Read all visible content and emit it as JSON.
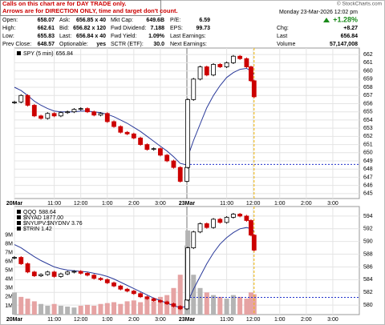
{
  "header": {
    "notice": [
      "Calls on this chart are for DAY TRADE only.",
      "Arrows are for DIRECTION ONLY, time and target don't count."
    ],
    "copyright": "© StockCharts.com",
    "date": "Monday 23-Mar-2026 12:02 pm",
    "change_pct": "+1.28%",
    "fields": [
      [
        [
          "Open:",
          "658.07"
        ],
        [
          "Ask:",
          "656.85 x 40"
        ],
        [
          "Mkt Cap:",
          "649.6B"
        ],
        [
          "P/E:",
          "6.59"
        ]
      ],
      [
        [
          "High:",
          "662.61"
        ],
        [
          "Bid:",
          "656.82 x 120"
        ],
        [
          "Fwd Dividend:",
          "7.188"
        ],
        [
          "EPS:",
          "99.73"
        ]
      ],
      [
        [
          "Low:",
          "655.83"
        ],
        [
          "Last:",
          "656.84 x 40"
        ],
        [
          "Fwd Yield:",
          "1.09%"
        ],
        [
          "Last Earnings:"
        ]
      ],
      [
        [
          "Prev Close:",
          "648.57"
        ],
        [
          "Optionable:",
          "yes"
        ],
        [
          "SCTR (ETF):",
          "30.0"
        ],
        [
          "Next Earnings:"
        ]
      ]
    ],
    "right": [
      [
        "Chg:",
        "+8.27"
      ],
      [
        "Last",
        "656.84"
      ],
      [
        "Volume",
        "57,147,008"
      ]
    ]
  },
  "chart_data": [
    {
      "type": "candle",
      "x": [
        0,
        15,
        30,
        45,
        60,
        75,
        90,
        105,
        120,
        135,
        150,
        165,
        180,
        195,
        210,
        225,
        240,
        255,
        270,
        285,
        300,
        315,
        330,
        345,
        360,
        375,
        390,
        392,
        405,
        420,
        435,
        450,
        465,
        480,
        495,
        510,
        525,
        535,
        542
      ],
      "series": [
        {
          "name": "SPY (5 min)",
          "up_color": "#000000",
          "down_color": "#cc0000",
          "values": [
            656.2,
            657.0,
            655.8,
            654.5,
            654.2,
            654.8,
            654.5,
            654.9,
            655.0,
            655.3,
            655.4,
            655.0,
            654.6,
            654.8,
            653.8,
            653.2,
            652.5,
            652.3,
            651.8,
            651.0,
            650.4,
            650.5,
            649.7,
            649.0,
            648.2,
            646.5,
            648.2,
            656.5,
            659.0,
            660.5,
            659.5,
            660.8,
            660.5,
            661.0,
            661.8,
            661.5,
            660.5,
            658.8,
            656.84
          ]
        },
        {
          "color": "#2a3a9a",
          "values": [
            658.0,
            657.6,
            657.0,
            656.3,
            655.8,
            655.4,
            655.1,
            655.0,
            655.0,
            655.0,
            655.1,
            655.1,
            655.0,
            654.9,
            654.7,
            654.4,
            654.0,
            653.6,
            653.1,
            652.6,
            652.0,
            651.4,
            650.8,
            650.2,
            649.5,
            648.7,
            648.5,
            649.5,
            651.5,
            653.5,
            655.5,
            657.0,
            658.2,
            659.2,
            659.8,
            660.2,
            660.3,
            660.0,
            659.6
          ]
        }
      ],
      "reference_line": 648.57,
      "reference_color": "#2233cc",
      "cursor_color": "#f0b400",
      "xlim": [
        0,
        780
      ],
      "xticks": [
        {
          "value": 0,
          "label": "20Mar"
        },
        {
          "value": 90,
          "label": "11:00"
        },
        {
          "value": 150,
          "label": "12:00"
        },
        {
          "value": 210,
          "label": "1:00"
        },
        {
          "value": 270,
          "label": "2:00"
        },
        {
          "value": 330,
          "label": "3:00"
        },
        {
          "value": 390,
          "label": "23Mar"
        },
        {
          "value": 480,
          "label": "11:00"
        },
        {
          "value": 540,
          "label": "12:00"
        },
        {
          "value": 600,
          "label": "1:00"
        },
        {
          "value": 660,
          "label": "2:00"
        },
        {
          "value": 720,
          "label": "3:00"
        }
      ],
      "ylim": [
        644.4,
        662.8
      ],
      "yticks": [
        645,
        646,
        647,
        648,
        649,
        650,
        651,
        652,
        653,
        654,
        655,
        656,
        657,
        658,
        659,
        660,
        661,
        662
      ],
      "grid": true
    },
    {
      "type": "candle",
      "x": [
        0,
        15,
        30,
        45,
        60,
        75,
        90,
        105,
        120,
        135,
        150,
        165,
        180,
        195,
        210,
        225,
        240,
        255,
        270,
        285,
        300,
        315,
        330,
        345,
        360,
        375,
        390,
        392,
        405,
        420,
        435,
        450,
        465,
        480,
        495,
        510,
        525,
        535,
        542
      ],
      "series": [
        {
          "name": "QQQ",
          "up_color": "#000000",
          "down_color": "#cc0000",
          "values": [
            587.5,
            586.5,
            585.2,
            584.6,
            584.8,
            585.2,
            584.5,
            584.9,
            585.2,
            585.3,
            585.0,
            584.7,
            584.2,
            584.0,
            583.5,
            583.0,
            582.5,
            582.2,
            581.8,
            581.3,
            581.0,
            580.7,
            580.5,
            580.2,
            579.8,
            579.4,
            580.8,
            589.0,
            591.5,
            592.8,
            592.2,
            593.5,
            593.0,
            593.8,
            594.3,
            594.0,
            593.3,
            591.0,
            588.64
          ]
        },
        {
          "color": "#2a3a9a",
          "values": [
            589.5,
            589.0,
            588.3,
            587.6,
            587.0,
            586.5,
            586.0,
            585.7,
            585.5,
            585.4,
            585.3,
            585.2,
            585.0,
            584.8,
            584.5,
            584.1,
            583.6,
            583.1,
            582.6,
            582.1,
            581.6,
            581.1,
            580.7,
            580.3,
            579.9,
            579.6,
            579.8,
            580.5,
            582.5,
            584.5,
            586.5,
            588.2,
            589.6,
            590.6,
            591.4,
            592.0,
            592.2,
            592.0,
            591.6
          ]
        }
      ],
      "legend_extra": [
        "$NYAD 1877.00",
        "$NYUPV:$NYDNV 3.76",
        "$TRIN 1.42"
      ],
      "volume": {
        "up_color": "#b4b4b4",
        "down_color": "#e6a3a3",
        "values": [
          2.5,
          2.0,
          1.8,
          1.5,
          1.2,
          1.0,
          1.2,
          1.0,
          0.9,
          0.8,
          1.0,
          1.1,
          1.0,
          1.2,
          1.3,
          1.4,
          1.2,
          1.5,
          1.6,
          1.4,
          1.8,
          1.5,
          2.0,
          2.2,
          3.0,
          4.5,
          7.8,
          9.5,
          4.5,
          3.0,
          2.5,
          2.2,
          2.0,
          1.8,
          2.2,
          2.0,
          1.8,
          2.5,
          2.3
        ]
      },
      "vlim": [
        0,
        12.2
      ],
      "vticks": [
        {
          "value": 1,
          "label": "1M"
        },
        {
          "value": 2,
          "label": "2M"
        },
        {
          "value": 3,
          "label": "3M"
        },
        {
          "value": 4,
          "label": "4M"
        },
        {
          "value": 5,
          "label": "5M"
        },
        {
          "value": 6,
          "label": "6M"
        },
        {
          "value": 7,
          "label": "7M"
        },
        {
          "value": 8,
          "label": "8M"
        },
        {
          "value": 9,
          "label": "9M"
        }
      ],
      "reference_line": 581.2,
      "reference_color": "#2233cc",
      "cursor_color": "#f0b400",
      "xlim": [
        0,
        780
      ],
      "xticks": [
        {
          "value": 0,
          "label": "20Mar"
        },
        {
          "value": 90,
          "label": "11:00"
        },
        {
          "value": 150,
          "label": "12:00"
        },
        {
          "value": 210,
          "label": "1:00"
        },
        {
          "value": 270,
          "label": "2:00"
        },
        {
          "value": 330,
          "label": "3:00"
        },
        {
          "value": 390,
          "label": "23Mar"
        },
        {
          "value": 480,
          "label": "11:00"
        },
        {
          "value": 540,
          "label": "12:00"
        },
        {
          "value": 600,
          "label": "1:00"
        },
        {
          "value": 660,
          "label": "2:00"
        },
        {
          "value": 720,
          "label": "3:00"
        }
      ],
      "ylim": [
        578.5,
        595.5
      ],
      "yticks": [
        580,
        582,
        584,
        586,
        588,
        590,
        592,
        594
      ],
      "grid": true
    }
  ]
}
